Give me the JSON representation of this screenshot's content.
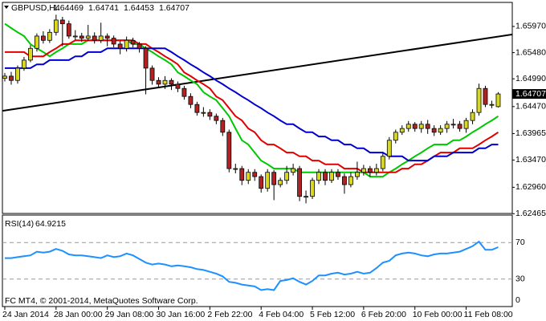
{
  "chart_data": [
    {
      "type": "candlestick",
      "symbol": "GBPUSD,H4",
      "categories": [
        "24 Jan 2014",
        null,
        null,
        null,
        null,
        null,
        null,
        null,
        "28 Jan 00:00",
        null,
        null,
        null,
        null,
        null,
        null,
        null,
        "29 Jan 08:00",
        null,
        null,
        null,
        null,
        null,
        null,
        null,
        "30 Jan 16:00",
        null,
        null,
        null,
        null,
        null,
        null,
        null,
        "2 Feb 22:00",
        null,
        null,
        null,
        null,
        null,
        null,
        null,
        "4 Feb 04:00",
        null,
        null,
        null,
        null,
        null,
        null,
        null,
        "5 Feb 12:00",
        null,
        null,
        null,
        null,
        null,
        null,
        null,
        "6 Feb 20:00",
        null,
        null,
        null,
        null,
        null,
        null,
        null,
        "10 Feb 00:00",
        null,
        null,
        null,
        null,
        null,
        null,
        null,
        "11 Feb 08:00",
        null,
        null,
        null,
        null,
        null
      ],
      "open": [
        1.65,
        1.6504,
        1.6496,
        1.6519,
        1.6534,
        1.6556,
        1.6579,
        1.6571,
        1.6586,
        1.6609,
        1.6602,
        1.6579,
        1.6579,
        1.6575,
        1.6579,
        1.6571,
        1.6579,
        1.6575,
        1.6564,
        1.6556,
        1.6571,
        1.6564,
        1.6556,
        1.6519,
        1.6496,
        1.6489,
        1.6496,
        1.6489,
        1.6481,
        1.6466,
        1.6451,
        1.6436,
        1.6436,
        1.6429,
        1.6421,
        1.6399,
        1.6331,
        1.6331,
        1.6309,
        1.6324,
        1.6316,
        1.6294,
        1.6324,
        1.6301,
        1.6309,
        1.6324,
        1.6331,
        1.6279,
        1.6279,
        1.6309,
        1.6324,
        1.6309,
        1.6324,
        1.6316,
        1.6301,
        1.6316,
        1.6324,
        1.6331,
        1.6324,
        1.6331,
        1.6354,
        1.6384,
        1.6399,
        1.6406,
        1.6414,
        1.6406,
        1.6414,
        1.6406,
        1.6399,
        1.6406,
        1.6414,
        1.6414,
        1.6406,
        1.6421,
        1.6436,
        1.6481,
        1.6451,
        1.64469
      ],
      "high": [
        1.651,
        1.6512,
        1.6524,
        1.654,
        1.6562,
        1.6584,
        1.6588,
        1.6592,
        1.6619,
        1.6615,
        1.6608,
        1.659,
        1.6585,
        1.66,
        1.6586,
        1.6604,
        1.6584,
        1.658,
        1.657,
        1.6578,
        1.6576,
        1.6568,
        1.656,
        1.6524,
        1.6502,
        1.6504,
        1.65,
        1.6494,
        1.6486,
        1.6472,
        1.6456,
        1.6446,
        1.6442,
        1.6434,
        1.6426,
        1.6404,
        1.634,
        1.6336,
        1.633,
        1.633,
        1.632,
        1.633,
        1.6328,
        1.6314,
        1.6336,
        1.634,
        1.6336,
        1.629,
        1.6314,
        1.633,
        1.633,
        1.633,
        1.633,
        1.6322,
        1.6324,
        1.6344,
        1.6338,
        1.6336,
        1.634,
        1.636,
        1.639,
        1.6404,
        1.6412,
        1.642,
        1.6418,
        1.642,
        1.6422,
        1.6412,
        1.6412,
        1.642,
        1.6424,
        1.642,
        1.6426,
        1.6442,
        1.649,
        1.6486,
        1.6458,
        1.64741
      ],
      "low": [
        1.6494,
        1.6488,
        1.649,
        1.6514,
        1.653,
        1.655,
        1.6565,
        1.6566,
        1.658,
        1.656,
        1.6574,
        1.6572,
        1.6568,
        1.657,
        1.6565,
        1.6566,
        1.656,
        1.6558,
        1.6545,
        1.655,
        1.6558,
        1.6548,
        1.647,
        1.6488,
        1.6482,
        1.648,
        1.6478,
        1.6474,
        1.646,
        1.6444,
        1.643,
        1.6428,
        1.6422,
        1.6414,
        1.6392,
        1.6324,
        1.6322,
        1.63,
        1.6302,
        1.6308,
        1.6286,
        1.6288,
        1.6272,
        1.6296,
        1.6302,
        1.6318,
        1.627,
        1.6266,
        1.6274,
        1.6302,
        1.63,
        1.6304,
        1.631,
        1.6284,
        1.6296,
        1.631,
        1.6318,
        1.6316,
        1.6318,
        1.6326,
        1.6348,
        1.6378,
        1.6394,
        1.64,
        1.64,
        1.6398,
        1.6396,
        1.6392,
        1.6394,
        1.6398,
        1.6406,
        1.64,
        1.6398,
        1.6414,
        1.643,
        1.6446,
        1.6444,
        1.64453
      ],
      "close": [
        1.6504,
        1.6496,
        1.6519,
        1.6534,
        1.6556,
        1.6579,
        1.6571,
        1.6586,
        1.6609,
        1.6602,
        1.6579,
        1.6579,
        1.6575,
        1.6579,
        1.6571,
        1.6579,
        1.6575,
        1.6564,
        1.6556,
        1.6571,
        1.6564,
        1.6556,
        1.6519,
        1.6496,
        1.6489,
        1.6496,
        1.6489,
        1.6481,
        1.6466,
        1.6451,
        1.6436,
        1.6436,
        1.6429,
        1.6421,
        1.6399,
        1.6331,
        1.6331,
        1.6309,
        1.6324,
        1.6316,
        1.6294,
        1.6324,
        1.6301,
        1.6309,
        1.6324,
        1.6331,
        1.6279,
        1.6279,
        1.6309,
        1.6324,
        1.6309,
        1.6324,
        1.6316,
        1.6301,
        1.6316,
        1.6324,
        1.6331,
        1.6324,
        1.6331,
        1.6354,
        1.6384,
        1.6399,
        1.6406,
        1.6414,
        1.6406,
        1.6414,
        1.6406,
        1.6399,
        1.6406,
        1.6414,
        1.6414,
        1.6406,
        1.6421,
        1.6436,
        1.6481,
        1.6451,
        1.6451,
        1.64707
      ],
      "up_color": "#d8d820",
      "down_color": "#b22222",
      "series": [
        {
          "color": "#00c800",
          "values": [
            1.6602,
            1.6594,
            1.6586,
            1.6579,
            1.6564,
            1.6556,
            1.6549,
            1.6541,
            1.6549,
            1.6556,
            1.6564,
            1.6564,
            1.6564,
            1.6571,
            1.6571,
            1.6571,
            1.6571,
            1.6571,
            1.6571,
            1.6571,
            1.6564,
            1.6564,
            1.6556,
            1.6549,
            1.6541,
            1.6534,
            1.6526,
            1.6511,
            1.6504,
            1.6496,
            1.6489,
            1.6474,
            1.6466,
            1.6459,
            1.6444,
            1.6429,
            1.6406,
            1.6384,
            1.6376,
            1.6361,
            1.6346,
            1.6339,
            1.6331,
            1.6331,
            1.6331,
            1.6331,
            1.6324,
            1.6324,
            1.6324,
            1.6324,
            1.6324,
            1.6324,
            1.6324,
            1.6324,
            1.6324,
            1.6324,
            1.6324,
            1.6316,
            1.6316,
            1.6316,
            1.6324,
            1.6331,
            1.6339,
            1.6346,
            1.6354,
            1.6361,
            1.6369,
            1.6376,
            1.6376,
            1.6376,
            1.6384,
            1.6384,
            1.6391,
            1.6399,
            1.6406,
            1.6414,
            1.6421,
            1.6429
          ]
        },
        {
          "color": "#e00000",
          "values": [
            1.6549,
            1.6549,
            1.6549,
            1.6549,
            1.6541,
            1.6541,
            1.6541,
            1.6549,
            1.6556,
            1.6564,
            1.6564,
            1.6571,
            1.6571,
            1.6571,
            1.6571,
            1.6571,
            1.6571,
            1.6571,
            1.6571,
            1.6571,
            1.6571,
            1.6564,
            1.6564,
            1.6556,
            1.6549,
            1.6541,
            1.6534,
            1.6526,
            1.6511,
            1.6504,
            1.6496,
            1.6489,
            1.6481,
            1.6466,
            1.6459,
            1.6444,
            1.6429,
            1.6421,
            1.6406,
            1.6399,
            1.6384,
            1.6376,
            1.6376,
            1.6369,
            1.6361,
            1.6361,
            1.6354,
            1.6354,
            1.6346,
            1.6346,
            1.6339,
            1.6339,
            1.6339,
            1.6331,
            1.6331,
            1.6331,
            1.6324,
            1.6324,
            1.6324,
            1.6324,
            1.6324,
            1.6324,
            1.6331,
            1.6331,
            1.6339,
            1.6339,
            1.6346,
            1.6354,
            1.6361,
            1.6361,
            1.6361,
            1.6369,
            1.6369,
            1.6369,
            1.6376,
            1.6384,
            1.6391,
            1.6399
          ]
        },
        {
          "color": "#0000cc",
          "values": [
            1.6519,
            1.6519,
            1.6519,
            1.6519,
            1.6519,
            1.6526,
            1.6526,
            1.6534,
            1.6534,
            1.6534,
            1.6534,
            1.6541,
            1.6541,
            1.6549,
            1.6549,
            1.6549,
            1.6556,
            1.6556,
            1.6556,
            1.6556,
            1.6556,
            1.6556,
            1.6556,
            1.6556,
            1.6556,
            1.6556,
            1.6549,
            1.6541,
            1.6534,
            1.6526,
            1.6519,
            1.6511,
            1.6504,
            1.6496,
            1.6489,
            1.6481,
            1.6474,
            1.6466,
            1.6459,
            1.6451,
            1.6444,
            1.6436,
            1.6429,
            1.6421,
            1.6414,
            1.6414,
            1.6406,
            1.6399,
            1.6399,
            1.6391,
            1.6391,
            1.6384,
            1.6384,
            1.6376,
            1.6376,
            1.6369,
            1.6369,
            1.6361,
            1.6361,
            1.6361,
            1.6354,
            1.6354,
            1.6354,
            1.6346,
            1.6346,
            1.6346,
            1.6346,
            1.6354,
            1.6354,
            1.6354,
            1.6361,
            1.6361,
            1.6361,
            1.6361,
            1.6369,
            1.6369,
            1.6376,
            1.6376
          ]
        }
      ],
      "trendline": {
        "start": 1.6439,
        "end": 1.6582,
        "color": "#000000"
      },
      "ylim": [
        1.6247,
        1.6642
      ],
      "yticks": [
        {
          "value": 1.6597,
          "label": "1.65970"
        },
        {
          "value": 1.6548,
          "label": "1.65480"
        },
        {
          "value": 1.6499,
          "label": "1.64990"
        },
        {
          "value": 1.6447,
          "label": "1.64470"
        },
        1.63965,
        {
          "value": 1.6347,
          "label": "1.63470"
        },
        {
          "value": 1.6296,
          "label": "1.62960"
        },
        1.62465
      ]
    },
    {
      "type": "line",
      "title": "RSI(14)",
      "color": "#1e90ff",
      "values": [
        53,
        53,
        54,
        55,
        56,
        60,
        59,
        60,
        63,
        61,
        57,
        56,
        56,
        55,
        54,
        53,
        56,
        54,
        55,
        58,
        56,
        52,
        48,
        46,
        47,
        46,
        44,
        45,
        44,
        43,
        41,
        40,
        38,
        36,
        33,
        27,
        26,
        24,
        23,
        22,
        18,
        19,
        18,
        28,
        29,
        31,
        27,
        24,
        28,
        34,
        34,
        36,
        37,
        35,
        36,
        38,
        36,
        37,
        42,
        48,
        50,
        56,
        58,
        59,
        58,
        56,
        55,
        57,
        58,
        58,
        59,
        60,
        63,
        66,
        71,
        62,
        62,
        64.9215
      ],
      "ylim": [
        0,
        100
      ],
      "yticks": [
        70,
        30,
        0
      ]
    }
  ],
  "footer": "FC MT4, © 2001-2014, MetaQuotes Software Corp."
}
